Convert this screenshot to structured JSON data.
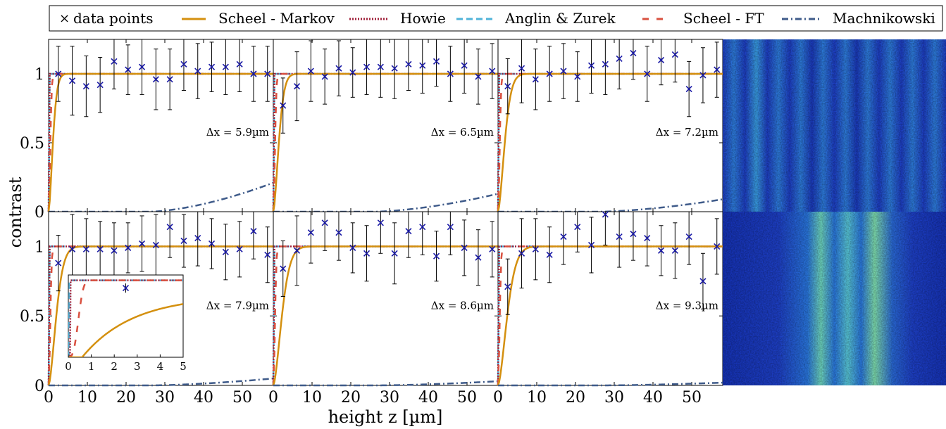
{
  "legend": [
    {
      "key": "data",
      "label": "data points",
      "color": "#1a1aa6",
      "style": "marker-x"
    },
    {
      "key": "scheel_markov",
      "label": "Scheel - Markov",
      "color": "#d4900f",
      "style": "solid"
    },
    {
      "key": "howie",
      "label": "Howie",
      "color": "#a0203a",
      "style": "dotted"
    },
    {
      "key": "anglin",
      "label": "Anglin & Zurek",
      "color": "#4fb3d9",
      "style": "dashed"
    },
    {
      "key": "scheel_ft",
      "label": "Scheel - FT",
      "color": "#d9503f",
      "style": "dashed"
    },
    {
      "key": "machnikowski",
      "label": "Machnikowski",
      "color": "#3f5b8a",
      "style": "dashdot"
    }
  ],
  "axes": {
    "ylabel": "contrast",
    "xlabel": "height z [µm]",
    "yticks": [
      "0",
      "0.5",
      "1"
    ],
    "xticks": [
      "0",
      "10",
      "20",
      "30",
      "40",
      "50"
    ]
  },
  "inset": {
    "xticks": [
      "0",
      "1",
      "2",
      "3",
      "4",
      "5"
    ],
    "point": {
      "x": 2.5,
      "y": 0.9,
      "err": 0.06
    }
  },
  "chart_data": [
    {
      "type": "scatter",
      "label": "Δx = 5.9µm",
      "xlim": [
        0,
        58
      ],
      "ylim": [
        0,
        1.25
      ],
      "x": [
        2.5,
        6.1,
        9.7,
        13.3,
        16.9,
        20.5,
        24.1,
        27.7,
        31.3,
        34.9,
        38.5,
        42.1,
        45.7,
        49.3,
        52.9,
        56.5
      ],
      "y": [
        1.0,
        0.95,
        0.91,
        0.92,
        1.09,
        1.03,
        1.05,
        0.96,
        0.96,
        1.07,
        1.02,
        1.05,
        1.05,
        1.07,
        1.0,
        1.0
      ],
      "err": [
        0.2,
        0.25,
        0.22,
        0.2,
        0.2,
        0.18,
        0.2,
        0.22,
        0.22,
        0.19,
        0.2,
        0.18,
        0.2,
        0.2,
        0.2,
        0.2
      ],
      "markov_tau": 1.4,
      "machnikowski_scale": 0.21
    },
    {
      "type": "scatter",
      "label": "Δx = 6.5µm",
      "xlim": [
        0,
        58
      ],
      "ylim": [
        0,
        1.25
      ],
      "x": [
        2.5,
        6.1,
        9.7,
        13.3,
        16.9,
        20.5,
        24.1,
        27.7,
        31.3,
        34.9,
        38.5,
        42.1,
        45.7,
        49.3,
        52.9,
        56.5
      ],
      "y": [
        0.77,
        0.91,
        1.02,
        0.98,
        1.04,
        1.01,
        1.05,
        1.05,
        1.04,
        1.07,
        1.06,
        1.09,
        1.0,
        1.06,
        0.98,
        1.02
      ],
      "err": [
        0.2,
        0.25,
        0.22,
        0.2,
        0.2,
        0.18,
        0.2,
        0.22,
        0.22,
        0.19,
        0.2,
        0.18,
        0.2,
        0.2,
        0.2,
        0.2
      ],
      "markov_tau": 1.8,
      "machnikowski_scale": 0.13
    },
    {
      "type": "scatter",
      "label": "Δx = 7.2µm",
      "xlim": [
        0,
        58
      ],
      "ylim": [
        0,
        1.25
      ],
      "x": [
        2.5,
        6.1,
        9.7,
        13.3,
        16.9,
        20.5,
        24.1,
        27.7,
        31.3,
        34.9,
        38.5,
        42.1,
        45.7,
        49.3,
        52.9,
        56.5
      ],
      "y": [
        0.91,
        1.04,
        0.96,
        1.0,
        1.02,
        0.98,
        1.06,
        1.07,
        1.11,
        1.15,
        1.0,
        1.1,
        1.14,
        0.89,
        0.99,
        1.03
      ],
      "err": [
        0.2,
        0.25,
        0.22,
        0.2,
        0.2,
        0.18,
        0.2,
        0.22,
        0.22,
        0.19,
        0.2,
        0.18,
        0.2,
        0.2,
        0.2,
        0.2
      ],
      "markov_tau": 2.2,
      "machnikowski_scale": 0.09
    },
    {
      "type": "scatter",
      "label": "Δx = 7.9µm",
      "xlim": [
        0,
        58
      ],
      "ylim": [
        0,
        1.25
      ],
      "x": [
        2.5,
        6.1,
        9.7,
        13.3,
        16.9,
        20.5,
        24.1,
        27.7,
        31.3,
        34.9,
        38.5,
        42.1,
        45.7,
        49.3,
        52.9,
        56.5
      ],
      "y": [
        0.88,
        0.98,
        0.98,
        0.98,
        0.97,
        0.99,
        1.02,
        1.01,
        1.14,
        1.04,
        1.06,
        1.02,
        0.96,
        0.98,
        1.11,
        0.94
      ],
      "err": [
        0.2,
        0.25,
        0.22,
        0.2,
        0.2,
        0.18,
        0.2,
        0.22,
        0.22,
        0.19,
        0.2,
        0.18,
        0.2,
        0.2,
        0.2,
        0.2
      ],
      "markov_tau": 2.5,
      "machnikowski_scale": 0.05
    },
    {
      "type": "scatter",
      "label": "Δx = 8.6µm",
      "xlim": [
        0,
        58
      ],
      "ylim": [
        0,
        1.25
      ],
      "x": [
        2.5,
        6.1,
        9.7,
        13.3,
        16.9,
        20.5,
        24.1,
        27.7,
        31.3,
        34.9,
        38.5,
        42.1,
        45.7,
        49.3,
        52.9,
        56.5
      ],
      "y": [
        0.84,
        0.97,
        1.1,
        1.17,
        1.1,
        0.99,
        0.95,
        1.17,
        0.95,
        1.11,
        1.14,
        0.93,
        1.14,
        0.99,
        0.92,
        0.98
      ],
      "err": [
        0.2,
        0.25,
        0.22,
        0.2,
        0.2,
        0.18,
        0.2,
        0.22,
        0.22,
        0.19,
        0.2,
        0.18,
        0.2,
        0.2,
        0.2,
        0.2
      ],
      "markov_tau": 2.8,
      "machnikowski_scale": 0.03
    },
    {
      "type": "scatter",
      "label": "Δx = 9.3µm",
      "xlim": [
        0,
        58
      ],
      "ylim": [
        0,
        1.25
      ],
      "x": [
        2.5,
        6.1,
        9.7,
        13.3,
        16.9,
        20.5,
        24.1,
        27.7,
        31.3,
        34.9,
        38.5,
        42.1,
        45.7,
        49.3,
        52.9,
        56.5
      ],
      "y": [
        0.71,
        0.95,
        0.98,
        0.94,
        1.07,
        1.14,
        1.01,
        1.23,
        1.07,
        1.09,
        1.06,
        0.97,
        0.97,
        1.07,
        0.75,
        1.0
      ],
      "err": [
        0.2,
        0.25,
        0.22,
        0.2,
        0.2,
        0.18,
        0.2,
        0.22,
        0.22,
        0.19,
        0.2,
        0.18,
        0.2,
        0.2,
        0.2,
        0.2
      ],
      "markov_tau": 3.0,
      "machnikowski_scale": 0.02
    }
  ],
  "images": [
    {
      "key": "fringes-top",
      "stripes": "fine-vertical"
    },
    {
      "key": "fringes-bottom",
      "stripes": "broad-central"
    }
  ]
}
